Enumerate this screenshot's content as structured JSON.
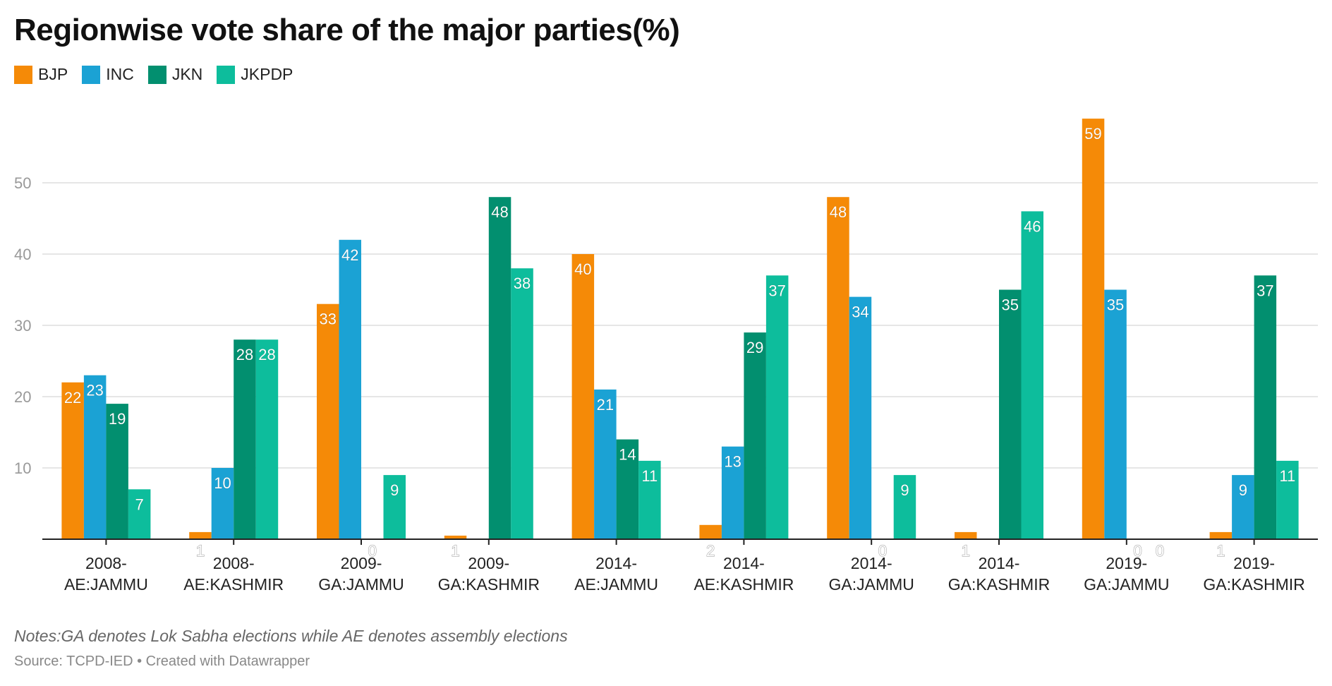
{
  "title": "Regionwise vote share of the major parties(%)",
  "notes": "Notes:GA denotes Lok Sabha elections while AE denotes assembly elections",
  "source": "Source: TCPD-IED • Created with Datawrapper",
  "chart_data": {
    "type": "bar",
    "categories": [
      [
        "2008-",
        "AE:JAMMU"
      ],
      [
        "2008-",
        "AE:KASHMIR"
      ],
      [
        "2009-",
        "GA:JAMMU"
      ],
      [
        "2009-",
        "GA:KASHMIR"
      ],
      [
        "2014-",
        "AE:JAMMU"
      ],
      [
        "2014-",
        "AE:KASHMIR"
      ],
      [
        "2014-",
        "GA:JAMMU"
      ],
      [
        "2014-",
        "GA:KASHMIR"
      ],
      [
        "2019-",
        "GA:JAMMU"
      ],
      [
        "2019-",
        "GA:KASHMIR"
      ]
    ],
    "series": [
      {
        "name": "BJP",
        "color": "#f58a07",
        "values": [
          22,
          1,
          33,
          0.5,
          40,
          2,
          48,
          1,
          59,
          1
        ]
      },
      {
        "name": "INC",
        "color": "#1ba2d4",
        "values": [
          23,
          10,
          42,
          0,
          21,
          13,
          34,
          0,
          35,
          9
        ]
      },
      {
        "name": "JKN",
        "color": "#028f6f",
        "values": [
          19,
          28,
          0,
          48,
          14,
          29,
          0,
          35,
          0,
          37
        ]
      },
      {
        "name": "JKPDP",
        "color": "#0dbd9c",
        "values": [
          7,
          28,
          9,
          38,
          11,
          37,
          9,
          46,
          0,
          11
        ]
      }
    ],
    "data_labels": [
      [
        "22",
        "1",
        "33",
        "1",
        "40",
        "2",
        "48",
        "1",
        "59",
        "1"
      ],
      [
        "23",
        "10",
        "42",
        "",
        "21",
        "13",
        "34",
        "",
        "35",
        "9"
      ],
      [
        "19",
        "28",
        "0",
        "48",
        "14",
        "29",
        "0",
        "35",
        "0",
        "37"
      ],
      [
        "7",
        "28",
        "9",
        "38",
        "11",
        "37",
        "9",
        "46",
        "0",
        "11"
      ]
    ],
    "yticks": [
      10,
      20,
      30,
      40,
      50
    ],
    "ylim": [
      0,
      60
    ],
    "grid": true,
    "legend": "top-left"
  }
}
